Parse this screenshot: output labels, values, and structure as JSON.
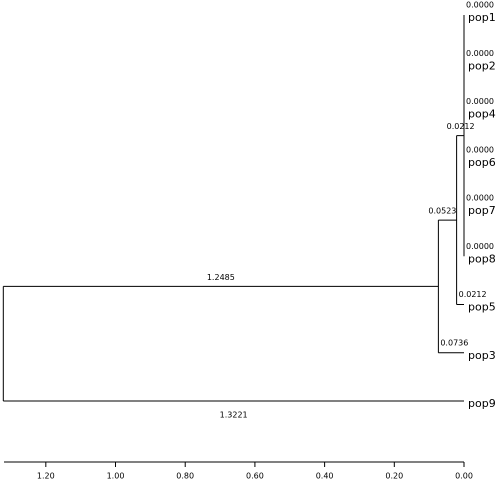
{
  "chart_data": {
    "type": "dendrogram",
    "tree": {
      "children": [
        {
          "children": [
            {
              "children": [
                {
                  "children": [
                    {
                      "name": "pop1",
                      "value": 0,
                      "value_label": "0.0000"
                    },
                    {
                      "name": "pop2",
                      "value": 0,
                      "value_label": "0.0000"
                    },
                    {
                      "name": "pop4",
                      "value": 0,
                      "value_label": "0.0000"
                    },
                    {
                      "name": "pop6",
                      "value": 0,
                      "value_label": "0.0000"
                    },
                    {
                      "name": "pop7",
                      "value": 0,
                      "value_label": "0.0000"
                    },
                    {
                      "name": "pop8",
                      "value": 0,
                      "value_label": "0.0000"
                    }
                  ],
                  "value": 0.0212
                },
                {
                  "name": "pop5",
                  "value": 0.0212
                }
              ],
              "value": 0.0523
            },
            {
              "name": "pop3",
              "value": 0.0736
            }
          ],
          "value": 1.2485
        },
        {
          "name": "pop9",
          "value": 1.3221
        }
      ]
    },
    "xlim": [
      1.32,
      0
    ],
    "xticks": [
      {
        "value": 1.2,
        "label": "1.20"
      },
      {
        "value": 1,
        "label": "1.00"
      },
      {
        "value": 0.8,
        "label": "0.80"
      },
      {
        "value": 0.6,
        "label": "0.60"
      },
      {
        "value": 0.4,
        "label": "0.40"
      },
      {
        "value": 0.2,
        "label": "0.20"
      },
      {
        "value": 0,
        "label": "0.00"
      }
    ],
    "color": "#000000"
  }
}
